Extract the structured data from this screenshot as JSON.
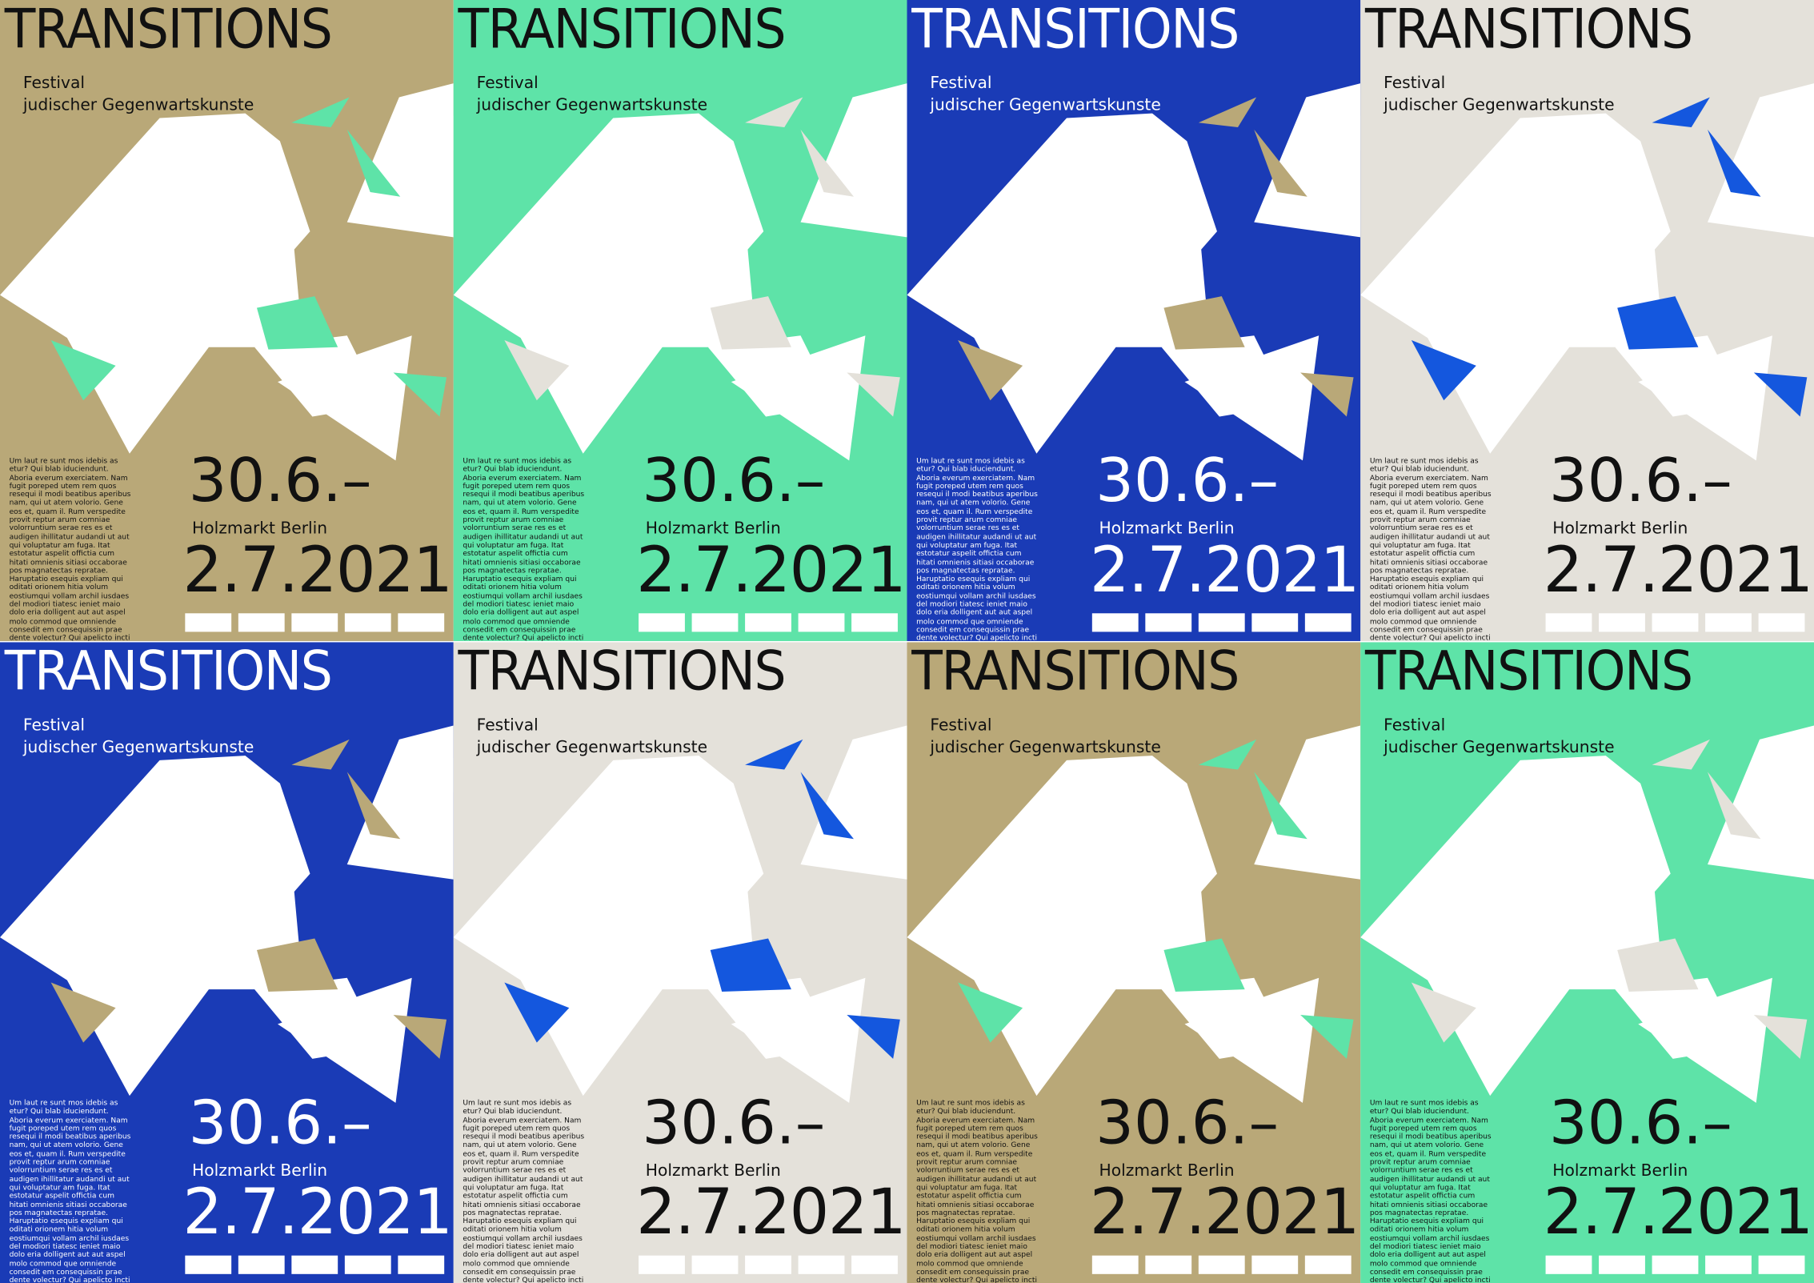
{
  "posters": [
    {
      "background": "#b9a878",
      "accent": "#5ee3a8",
      "text_color": "#111111",
      "title": "TRANSITIONS",
      "festival": "Festival",
      "subtitle": "judischer Gegenwartskunste",
      "body": "Um laut re sunt mos idebis as etur? Qui blab iduciendunt. Aboria everum exerciatem. Nam fugit poreped utem rem quos resequi il modi beatibus aperibus nam, qui ut atem volorio. Gene eos et, quam il. Rum verspedite provit reptur arum comniae volorruntium serae res es et audigen ihillitatur audandi ut aut qui voluptatur am fuga. Itat estotatur aspelit offictia cum hitati omnienis sitiasi occaborae pos magnatectas repratae. Haruptatio esequis expliam qui oditati orionem hitia volum eostiumqui vollam archil iusdaes del modiori tiatesc ieniet maio dolo eria dolligent aut aut aspel molo commod que omniende consedit em consequissin prae dente volectur? Qui apelicto incti rem rem ratibus dolorum fugiatemque moluptae nis re volentotas adi",
      "date_start": "30.6.–",
      "venue": "Holzmarkt Berlin",
      "date_end": "2.7.2021"
    },
    {
      "background": "#5ee3a8",
      "accent": "#e4e1da",
      "text_color": "#111111",
      "title": "TRANSITIONS",
      "festival": "Festival",
      "subtitle": "judischer Gegenwartskunste",
      "body": "Um laut re sunt mos idebis as etur? Qui blab iduciendunt. Aboria everum exerciatem. Nam fugit poreped utem rem quos resequi il modi beatibus aperibus nam, qui ut atem volorio. Gene eos et, quam il. Rum verspedite provit reptur arum comniae volorruntium serae res es et audigen ihillitatur audandi ut aut qui voluptatur am fuga. Itat estotatur aspelit offictia cum hitati omnienis sitiasi occaborae pos magnatectas repratae. Haruptatio esequis expliam qui oditati orionem hitia volum eostiumqui vollam archil iusdaes del modiori tiatesc ieniet maio dolo eria dolligent aut aut aspel molo commod que omniende consedit em consequissin prae dente volectur? Qui apelicto incti rem",
      "date_start": "30.6.–",
      "venue": "Holzmarkt Berlin",
      "date_end": "2.7.2021"
    },
    {
      "background": "#1a3bb6",
      "accent": "#b9a878",
      "text_color": "#ffffff",
      "title": "TRANSITIONS",
      "festival": "Festival",
      "subtitle": "judischer Gegenwartskunste",
      "body": "Um laut re sunt mos idebis as etur? Qui blab iduciendunt. Aboria everum exerciatem. Nam fugit poreped utem rem quos resequi il modi beatibus aperibus nam, qui ut atem volorio. Gene eos et, quam il. Rum verspedite provit reptur arum comniae volorruntium serae res es et audigen ihillitatur audandi ut aut qui voluptatur am fuga. Itat estotatur aspelit offictia cum hitati omnienis sitiasi occaborae pos magnatectas repratae. Haruptatio esequis expliam qui oditati orionem hitia volum eostiumqui vollam archil iusdaes del modiori tiatesc ieniet maio dolo eria dolligent aut aut aspel molo commod que omniende consedit em consequissin prae dente volectur? Qui apelicto incti rem",
      "date_start": "30.6.–",
      "venue": "Holzmarkt Berlin",
      "date_end": "2.7.2021"
    },
    {
      "background": "#e4e1da",
      "accent": "#1457de",
      "text_color": "#111111",
      "title": "TRANSITIONS",
      "festival": "Festival",
      "subtitle": "judischer Gegenwartskunste",
      "body": "Um laut re sunt mos idebis as etur? Qui blab iduciendunt. Aboria everum exerciatem. Nam fugit poreped utem rem quos resequi il modi beatibus aperibus nam, qui ut atem volorio. Gene eos et, quam il. Rum verspedite provit reptur arum comniae volorruntium serae res es et audigen ihillitatur audandi ut aut qui voluptatur am fuga. Itat estotatur aspelit offictia cum hitati omnienis sitiasi occaborae pos magnatectas repratae. Haruptatio esequis expliam qui oditati orionem hitia volum eostiumqui vollam archil iusdaes del modiori tiatesc ieniet maio dolo eria dolligent aut aut aspel molo commod que omniende consedit em consequissin prae dente volectur? Qui apelicto incti rem rem ratibus dolorum fugiatemque moluptae nis re volentotas adi",
      "date_start": "30.6.–",
      "venue": "Holzmarkt Berlin",
      "date_end": "2.7.2021"
    },
    {
      "background": "#1a3bb6",
      "accent": "#b9a878",
      "text_color": "#ffffff",
      "title": "TRANSITIONS",
      "festival": "Festival",
      "subtitle": "judischer Gegenwartskunste",
      "body": "Um laut re sunt mos idebis as etur? Qui blab iduciendunt. Aboria everum exerciatem. Nam fugit poreped utem rem quos resequi il modi beatibus aperibus nam, qui ut atem volorio. Gene eos et, quam il. Rum verspedite provit reptur arum comniae volorruntium serae res es et audigen ihillitatur audandi ut aut qui voluptatur am fuga. Itat estotatur aspelit offictia cum hitati omnienis sitiasi occaborae pos magnatectas repratae. Haruptatio esequis expliam qui oditati orionem hitia volum eostiumqui vollam archil iusdaes del modiori tiatesc ieniet maio dolo eria dolligent aut aut aspel molo commod que omniende consedit em consequissin prae dente volectur? Qui apelicto incti rem",
      "date_start": "30.6.–",
      "venue": "Holzmarkt Berlin",
      "date_end": "2.7.2021"
    },
    {
      "background": "#e4e1da",
      "accent": "#1457de",
      "text_color": "#111111",
      "title": "TRANSITIONS",
      "festival": "Festival",
      "subtitle": "judischer Gegenwartskunste",
      "body": "Um laut re sunt mos idebis as etur? Qui blab iduciendunt. Aboria everum exerciatem. Nam fugit poreped utem rem quos resequi il modi beatibus aperibus nam, qui ut atem volorio. Gene eos et, quam il. Rum verspedite provit reptur arum comniae volorruntium serae res es et audigen ihillitatur audandi ut aut qui voluptatur am fuga. Itat estotatur aspelit offictia cum hitati omnienis sitiasi occaborae pos magnatectas repratae. Haruptatio esequis expliam qui oditati orionem hitia volum eostiumqui vollam archil iusdaes del modiori tiatesc ieniet maio dolo eria dolligent aut aut aspel molo commod que omniende consedit em consequissin prae dente volectur? Qui apelicto incti rem rem ratibus dolorum fugiatemque moluptae nis re volentotas adi",
      "date_start": "30.6.–",
      "venue": "Holzmarkt Berlin",
      "date_end": "2.7.2021"
    },
    {
      "background": "#b9a878",
      "accent": "#5ee3a8",
      "text_color": "#111111",
      "title": "TRANSITIONS",
      "festival": "Festival",
      "subtitle": "judischer Gegenwartskunste",
      "body": "Um laut re sunt mos idebis as etur? Qui blab iduciendunt. Aboria everum exerciatem. Nam fugit poreped utem rem quos resequi il modi beatibus aperibus nam, qui ut atem volorio. Gene eos et, quam il. Rum verspedite provit reptur arum comniae volorruntium serae res es et audigen ihillitatur audandi ut aut qui voluptatur am fuga. Itat estotatur aspelit offictia cum hitati omnienis sitiasi occaborae pos magnatectas repratae. Haruptatio esequis expliam qui oditati orionem hitia volum eostiumqui vollam archil iusdaes del modiori tiatesc ieniet maio dolo eria dolligent aut aut aspel molo commod que omniende consedit em consequissin prae dente volectur? Qui apelicto incti rem rem ratibus dolorum fugiatemque moluptae nis re volentotas adi",
      "date_start": "30.6.–",
      "venue": "Holzmarkt Berlin",
      "date_end": "2.7.2021"
    },
    {
      "background": "#5ee3a8",
      "accent": "#e4e1da",
      "text_color": "#111111",
      "title": "TRANSITIONS",
      "festival": "Festival",
      "subtitle": "judischer Gegenwartskunste",
      "body": "Um laut re sunt mos idebis as etur? Qui blab iduciendunt. Aboria everum exerciatem. Nam fugit poreped utem rem quos resequi il modi beatibus aperibus nam, qui ut atem volorio. Gene eos et, quam il. Rum verspedite provit reptur arum comniae volorruntium serae res es et audigen ihillitatur audandi ut aut qui voluptatur am fuga. Itat estotatur aspelit offictia cum hitati omnienis sitiasi occaborae pos magnatectas repratae. Haruptatio esequis expliam qui oditati orionem hitia volum eostiumqui vollam archil iusdaes del modiori tiatesc ieniet maio dolo eria dolligent aut aut aspel molo commod que omniende consedit em consequissin prae dente volectur? Qui apelicto incti rem",
      "date_start": "30.6.–",
      "venue": "Holzmarkt Berlin",
      "date_end": "2.7.2021"
    }
  ]
}
